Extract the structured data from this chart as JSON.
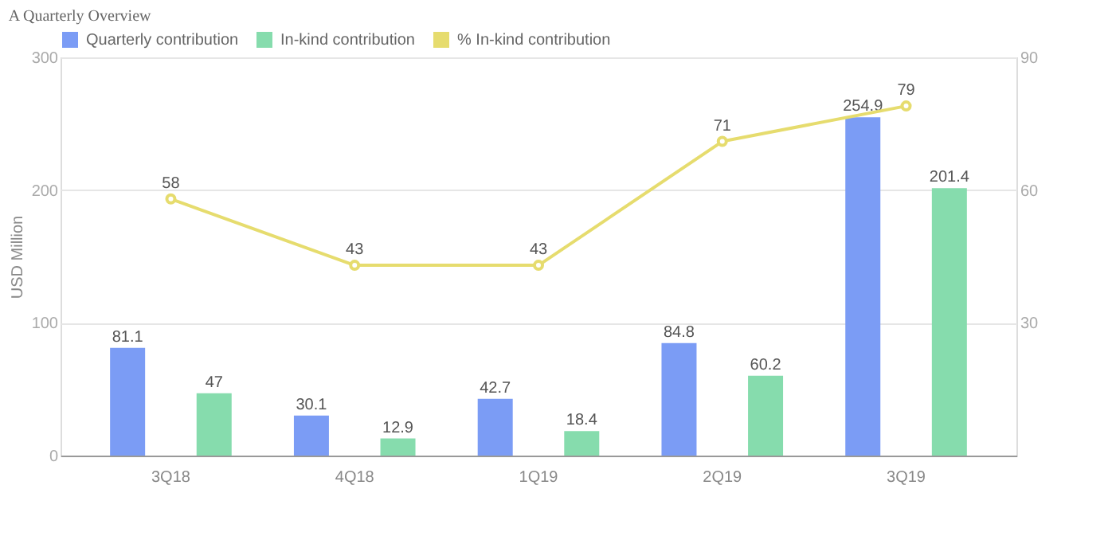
{
  "chart_data": {
    "type": "bar",
    "title": "A Quarterly Overview",
    "ylabel": "USD Million",
    "categories": [
      "3Q18",
      "4Q18",
      "1Q19",
      "2Q19",
      "3Q19"
    ],
    "series": [
      {
        "name": "Quarterly contribution",
        "color": "#7b9cf5",
        "values": [
          81.1,
          30.1,
          42.7,
          84.8,
          254.9
        ]
      },
      {
        "name": "In-kind contribution",
        "color": "#86dcad",
        "values": [
          47,
          12.9,
          18.4,
          60.2,
          201.4
        ]
      },
      {
        "name": "% In-kind contribution",
        "color": "#e6dc6e",
        "type": "line",
        "axis": "y2",
        "marker": "circle",
        "values": [
          58,
          43,
          43,
          71,
          79
        ]
      }
    ],
    "ylim": [
      0,
      300
    ],
    "yticks": [
      0,
      100,
      200,
      300
    ],
    "y2lim": [
      0,
      90
    ],
    "y2ticks": [
      30,
      60,
      90
    ],
    "grid": "y",
    "legend": "top left",
    "data_labels": true
  }
}
